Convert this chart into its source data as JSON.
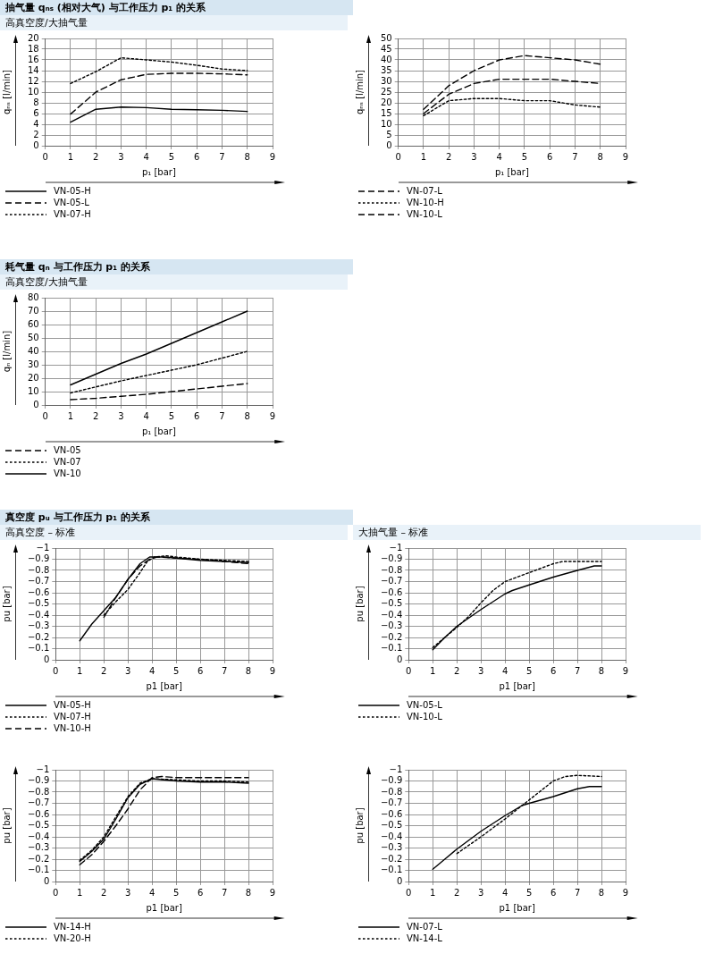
{
  "chart_data": [
    {
      "type": "line",
      "title": "抽气量 qₙₛ (相对大气) 与工作压力 p₁ 的关系",
      "subtitle": "高真空度/大抽气量",
      "xlabel": "p₁ [bar]",
      "ylabel": "qₙₛ [l/min]",
      "x": [
        1,
        2,
        3,
        4,
        5,
        6,
        7,
        8
      ],
      "xlim": [
        0,
        9
      ],
      "xticks": [
        0,
        1,
        2,
        3,
        4,
        5,
        6,
        7,
        8,
        9
      ],
      "ylim": [
        0,
        20
      ],
      "yticks": [
        0,
        2,
        4,
        6,
        8,
        10,
        12,
        14,
        16,
        18,
        20
      ],
      "grid": true,
      "legend": "bottom",
      "series": [
        {
          "name": "VN-05-H",
          "color": "#000000",
          "line_style": "solid",
          "values": [
            4.4,
            6.8,
            7.2,
            7.1,
            6.8,
            6.7,
            6.6,
            6.4
          ]
        },
        {
          "name": "VN-05-L",
          "color": "#000000",
          "line_style": "dashed",
          "values": [
            5.9,
            10,
            12.3,
            13.3,
            13.5,
            13.5,
            13.4,
            13.2
          ]
        },
        {
          "name": "VN-07-H",
          "color": "#000000",
          "line_style": "dotted",
          "values": [
            11.6,
            13.8,
            16.4,
            16,
            15.6,
            15,
            14.3,
            14
          ]
        }
      ]
    },
    {
      "type": "line",
      "xlabel": "p₁ [bar]",
      "ylabel": "qₙₛ [l/min]",
      "x": [
        1,
        2,
        3,
        4,
        5,
        6,
        7,
        8
      ],
      "xlim": [
        0,
        9
      ],
      "xticks": [
        0,
        1,
        2,
        3,
        4,
        5,
        6,
        7,
        8,
        9
      ],
      "ylim": [
        0,
        50
      ],
      "yticks": [
        0,
        5,
        10,
        15,
        20,
        25,
        30,
        35,
        40,
        45,
        50
      ],
      "grid": true,
      "legend": "bottom",
      "series": [
        {
          "name": "VN-07-L",
          "color": "#000000",
          "line_style": "dashed",
          "values": [
            15,
            24,
            29,
            31,
            31,
            31,
            30,
            29
          ]
        },
        {
          "name": "VN-10-H",
          "color": "#000000",
          "line_style": "dotted",
          "values": [
            14,
            21,
            22,
            22,
            21,
            21,
            19,
            18
          ]
        },
        {
          "name": "VN-10-L",
          "color": "#000000",
          "line_style": "dashed",
          "values": [
            17,
            28,
            35,
            40,
            42,
            41,
            40,
            38
          ]
        }
      ]
    },
    {
      "type": "line",
      "title": "耗气量 qₙ 与工作压力 p₁ 的关系",
      "subtitle": "高真空度/大抽气量",
      "xlabel": "p₁ [bar]",
      "ylabel": "qₙ [l/min]",
      "x": [
        1,
        2,
        3,
        4,
        5,
        6,
        7,
        8
      ],
      "xlim": [
        0,
        9
      ],
      "xticks": [
        0,
        1,
        2,
        3,
        4,
        5,
        6,
        7,
        8,
        9
      ],
      "ylim": [
        0,
        80
      ],
      "yticks": [
        0,
        10,
        20,
        30,
        40,
        50,
        60,
        70,
        80
      ],
      "grid": true,
      "legend": "bottom",
      "series": [
        {
          "name": "VN-05",
          "color": "#000000",
          "line_style": "dashed",
          "values": [
            4,
            5,
            6.5,
            8,
            10,
            12,
            14,
            16
          ]
        },
        {
          "name": "VN-07",
          "color": "#000000",
          "line_style": "dotted",
          "values": [
            9,
            13.5,
            18,
            22,
            26,
            30,
            35,
            40
          ]
        },
        {
          "name": "VN-10",
          "color": "#000000",
          "line_style": "solid",
          "values": [
            15,
            23,
            31,
            38,
            46,
            54,
            62,
            70
          ]
        }
      ]
    },
    {
      "type": "line",
      "title": "真空度 pᵤ 与工作压力 p₁ 的关系",
      "subtitle": "高真空度 – 标准",
      "xlabel": "p1 [bar]",
      "ylabel": "pu [bar]",
      "xlim": [
        0,
        9
      ],
      "xticks": [
        0,
        1,
        2,
        3,
        4,
        5,
        6,
        7,
        8,
        9
      ],
      "ylim": [
        0,
        -1
      ],
      "yticks": [
        0,
        {
          "value": -0.1,
          "label": "−0.1"
        },
        {
          "value": -0.2,
          "label": "−0.2"
        },
        {
          "value": -0.3,
          "label": "−0.3"
        },
        {
          "value": -0.4,
          "label": "−0.4"
        },
        {
          "value": -0.5,
          "label": "−0.5"
        },
        {
          "value": -0.6,
          "label": "−0.6"
        },
        {
          "value": -0.7,
          "label": "−0.7"
        },
        {
          "value": -0.8,
          "label": "−0.8"
        },
        {
          "value": -0.9,
          "label": "−0.9"
        },
        {
          "value": -1,
          "label": "−1"
        }
      ],
      "grid": true,
      "legend": "bottom",
      "series": [
        {
          "name": "VN-05-H",
          "color": "#000000",
          "line_style": "solid",
          "x": [
            1,
            1.5,
            2,
            2.5,
            3,
            3.5,
            3.9,
            4.5,
            5,
            6,
            7,
            8
          ],
          "values": [
            -0.17,
            -0.32,
            -0.44,
            -0.56,
            -0.72,
            -0.86,
            -0.92,
            -0.92,
            -0.91,
            -0.89,
            -0.88,
            -0.87
          ]
        },
        {
          "name": "VN-07-H",
          "color": "#000000",
          "line_style": "dotted",
          "x": [
            2,
            2.5,
            3,
            3.5,
            3.8,
            4.1,
            4.6,
            5,
            6,
            7,
            8
          ],
          "values": [
            -0.4,
            -0.52,
            -0.63,
            -0.78,
            -0.88,
            -0.92,
            -0.93,
            -0.92,
            -0.9,
            -0.89,
            -0.88
          ]
        },
        {
          "name": "VN-10-H",
          "color": "#000000",
          "line_style": "dashed",
          "x": [
            2,
            2.5,
            3,
            3.5,
            3.9,
            4.2,
            5,
            6,
            7,
            8
          ],
          "values": [
            -0.38,
            -0.56,
            -0.72,
            -0.84,
            -0.9,
            -0.92,
            -0.91,
            -0.9,
            -0.88,
            -0.86
          ]
        }
      ]
    },
    {
      "type": "line",
      "subtitle": "大抽气量 – 标准",
      "xlabel": "p1 [bar]",
      "ylabel": "pu [bar]",
      "xlim": [
        0,
        9
      ],
      "xticks": [
        0,
        1,
        2,
        3,
        4,
        5,
        6,
        7,
        8,
        9
      ],
      "ylim": [
        0,
        -1
      ],
      "yticks": [
        0,
        {
          "value": -0.1,
          "label": "−0.1"
        },
        {
          "value": -0.2,
          "label": "−0.2"
        },
        {
          "value": -0.3,
          "label": "−0.3"
        },
        {
          "value": -0.4,
          "label": "−0.4"
        },
        {
          "value": -0.5,
          "label": "−0.5"
        },
        {
          "value": -0.6,
          "label": "−0.6"
        },
        {
          "value": -0.7,
          "label": "−0.7"
        },
        {
          "value": -0.8,
          "label": "−0.8"
        },
        {
          "value": -0.9,
          "label": "−0.9"
        },
        {
          "value": -1,
          "label": "−1"
        }
      ],
      "grid": true,
      "legend": "bottom",
      "series": [
        {
          "name": "VN-05-L",
          "color": "#000000",
          "line_style": "solid",
          "x": [
            1,
            1.5,
            2,
            3,
            4,
            4.3,
            5,
            6,
            7,
            7.7,
            8
          ],
          "values": [
            -0.09,
            -0.2,
            -0.3,
            -0.45,
            -0.59,
            -0.62,
            -0.67,
            -0.74,
            -0.8,
            -0.84,
            -0.84
          ]
        },
        {
          "name": "VN-10-L",
          "color": "#000000",
          "line_style": "dotted",
          "x": [
            1,
            1.5,
            2,
            2.5,
            3,
            3.5,
            4,
            5,
            6,
            6.4,
            7,
            8
          ],
          "values": [
            -0.11,
            -0.2,
            -0.29,
            -0.39,
            -0.51,
            -0.62,
            -0.7,
            -0.78,
            -0.86,
            -0.88,
            -0.88,
            -0.88
          ]
        }
      ]
    },
    {
      "type": "line",
      "xlabel": "p1 [bar]",
      "ylabel": "pu [bar]",
      "xlim": [
        0,
        9
      ],
      "xticks": [
        0,
        1,
        2,
        3,
        4,
        5,
        6,
        7,
        8,
        9
      ],
      "ylim": [
        0,
        -1
      ],
      "yticks": [
        0,
        {
          "value": -0.1,
          "label": "−0.1"
        },
        {
          "value": -0.2,
          "label": "−0.2"
        },
        {
          "value": -0.3,
          "label": "−0.3"
        },
        {
          "value": -0.4,
          "label": "−0.4"
        },
        {
          "value": -0.5,
          "label": "−0.5"
        },
        {
          "value": -0.6,
          "label": "−0.6"
        },
        {
          "value": -0.7,
          "label": "−0.7"
        },
        {
          "value": -0.8,
          "label": "−0.8"
        },
        {
          "value": -0.9,
          "label": "−0.9"
        },
        {
          "value": -1,
          "label": "−1"
        }
      ],
      "grid": true,
      "legend": "bottom",
      "series": [
        {
          "name": "VN-14-H",
          "color": "#000000",
          "line_style": "solid",
          "x": [
            1,
            1.5,
            2,
            2.5,
            3,
            3.5,
            4,
            5,
            6,
            7,
            8
          ],
          "values": [
            -0.18,
            -0.27,
            -0.38,
            -0.56,
            -0.75,
            -0.87,
            -0.92,
            -0.9,
            -0.89,
            -0.89,
            -0.88
          ]
        },
        {
          "name": "VN-20-H",
          "color": "#000000",
          "line_style": "dotted",
          "x": [
            1,
            1.5,
            2,
            2.5,
            3,
            3.5,
            4,
            5,
            6,
            7,
            8
          ],
          "values": [
            -0.19,
            -0.28,
            -0.4,
            -0.58,
            -0.76,
            -0.88,
            -0.92,
            -0.91,
            -0.9,
            -0.9,
            -0.89
          ]
        },
        {
          "color": "#000000",
          "line_style": "dashed",
          "x": [
            1,
            1.5,
            2,
            2.5,
            3,
            3.5,
            4,
            4.4,
            5,
            6,
            7,
            8
          ],
          "values": [
            -0.15,
            -0.24,
            -0.36,
            -0.5,
            -0.65,
            -0.82,
            -0.93,
            -0.94,
            -0.93,
            -0.93,
            -0.93,
            -0.93
          ]
        }
      ]
    },
    {
      "type": "line",
      "xlabel": "p1 [bar]",
      "ylabel": "pu [bar]",
      "xlim": [
        0,
        9
      ],
      "xticks": [
        0,
        1,
        2,
        3,
        4,
        5,
        6,
        7,
        8,
        9
      ],
      "ylim": [
        0,
        -1
      ],
      "yticks": [
        0,
        {
          "value": -0.1,
          "label": "−0.1"
        },
        {
          "value": -0.2,
          "label": "−0.2"
        },
        {
          "value": -0.3,
          "label": "−0.3"
        },
        {
          "value": -0.4,
          "label": "−0.4"
        },
        {
          "value": -0.5,
          "label": "−0.5"
        },
        {
          "value": -0.6,
          "label": "−0.6"
        },
        {
          "value": -0.7,
          "label": "−0.7"
        },
        {
          "value": -0.8,
          "label": "−0.8"
        },
        {
          "value": -0.9,
          "label": "−0.9"
        },
        {
          "value": -1,
          "label": "−1"
        }
      ],
      "grid": true,
      "legend": "bottom",
      "series": [
        {
          "name": "VN-07-L",
          "color": "#000000",
          "line_style": "solid",
          "x": [
            1,
            1.5,
            2,
            3,
            4,
            4.7,
            5,
            6,
            7,
            7.5,
            8
          ],
          "values": [
            -0.11,
            -0.2,
            -0.29,
            -0.45,
            -0.59,
            -0.68,
            -0.7,
            -0.76,
            -0.83,
            -0.85,
            -0.85
          ]
        },
        {
          "name": "VN-14-L",
          "color": "#000000",
          "line_style": "dotted",
          "x": [
            2,
            3,
            4,
            5,
            6,
            6.5,
            7,
            8
          ],
          "values": [
            -0.25,
            -0.4,
            -0.56,
            -0.73,
            -0.9,
            -0.94,
            -0.95,
            -0.94
          ]
        }
      ]
    }
  ]
}
